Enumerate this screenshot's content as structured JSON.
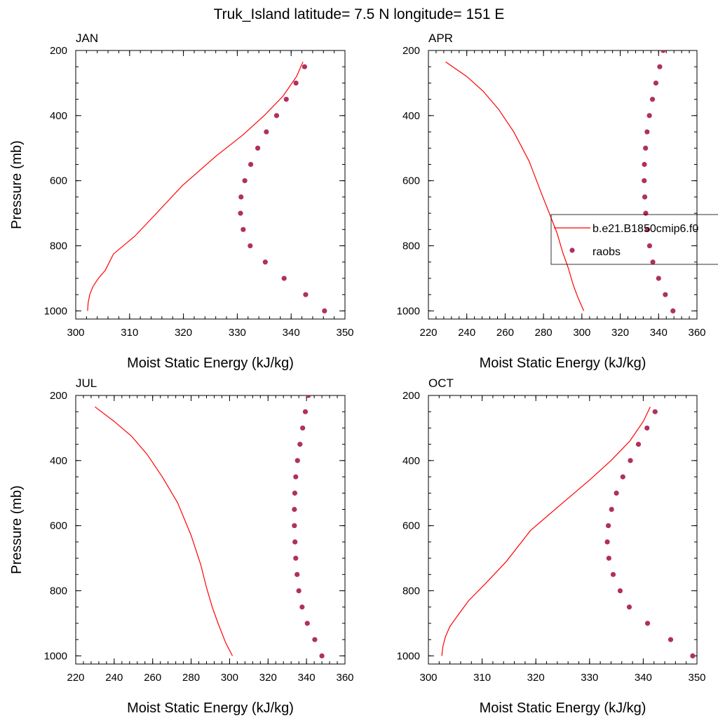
{
  "title": "Truk_Island  latitude= 7.5 N longitude= 151 E",
  "chart_data": [
    {
      "type": "line+scatter",
      "panel": "JAN",
      "xlabel": "Moist Static Energy (kJ/kg)",
      "ylabel": "Pressure (mb)",
      "xlim": [
        300,
        350
      ],
      "ylim": [
        200,
        1025
      ],
      "xticks": [
        300,
        310,
        320,
        330,
        340,
        350
      ],
      "yticks": [
        200,
        400,
        600,
        800,
        1000
      ],
      "model": {
        "name": "b.e21.B1850cmip6.f0",
        "x": [
          302.2,
          302.3,
          302.6,
          303.2,
          304.2,
          305.5,
          307.0,
          311.0,
          315.0,
          319.8,
          326.0,
          331.0,
          335.0,
          338.5,
          341.0,
          342.2
        ],
        "y": [
          1000,
          975,
          950,
          925,
          900,
          875,
          825,
          770,
          700,
          615,
          525,
          460,
          400,
          340,
          280,
          235
        ]
      },
      "obs": {
        "name": "raobs",
        "x": [
          346.2,
          342.7,
          338.7,
          335.2,
          332.4,
          331.1,
          330.6,
          330.7,
          331.4,
          332.5,
          333.8,
          335.4,
          337.3,
          339.1,
          340.9,
          342.5
        ],
        "y": [
          1000,
          950,
          900,
          850,
          800,
          750,
          700,
          650,
          600,
          550,
          500,
          450,
          400,
          350,
          300,
          250
        ]
      }
    },
    {
      "type": "line+scatter",
      "panel": "APR",
      "xlabel": "Moist Static Energy (kJ/kg)",
      "ylabel": "",
      "xlim": [
        220,
        360
      ],
      "ylim": [
        200,
        1025
      ],
      "xticks": [
        220,
        240,
        260,
        280,
        300,
        320,
        340,
        360
      ],
      "yticks": [
        200,
        400,
        600,
        800,
        1000
      ],
      "model": {
        "name": "b.e21.B1850cmip6.f0",
        "x": [
          301.0,
          298.0,
          295.5,
          293.0,
          290.0,
          287.0,
          283.0,
          279.0,
          272.5,
          264.5,
          256.5,
          248.5,
          240.0,
          229.0
        ],
        "y": [
          1000,
          960,
          920,
          870,
          820,
          760,
          700,
          640,
          540,
          450,
          380,
          325,
          280,
          235
        ]
      },
      "obs": {
        "name": "raobs",
        "x": [
          347.5,
          343.5,
          340.0,
          337.0,
          335.3,
          334.2,
          333.3,
          332.8,
          332.5,
          332.6,
          333.2,
          334.0,
          335.2,
          336.8,
          338.6,
          340.6,
          342.4
        ],
        "y": [
          1000,
          950,
          900,
          850,
          800,
          750,
          700,
          650,
          600,
          550,
          500,
          450,
          400,
          350,
          300,
          250,
          200
        ]
      },
      "legend": {
        "entries": [
          "b.e21.B1850cmip6.f0",
          "raobs"
        ],
        "position": "center-right"
      }
    },
    {
      "type": "line+scatter",
      "panel": "JUL",
      "xlabel": "Moist Static Energy (kJ/kg)",
      "ylabel": "Pressure (mb)",
      "xlim": [
        220,
        360
      ],
      "ylim": [
        200,
        1025
      ],
      "xticks": [
        220,
        240,
        260,
        280,
        300,
        320,
        340,
        360
      ],
      "yticks": [
        200,
        400,
        600,
        800,
        1000
      ],
      "model": {
        "name": "b.e21.B1850cmip6.f0",
        "x": [
          301.5,
          298.0,
          294.0,
          291.0,
          288.0,
          285.0,
          280.0,
          273.0,
          265.0,
          257.0,
          249.0,
          240.0,
          230.0
        ],
        "y": [
          1000,
          960,
          900,
          850,
          790,
          720,
          630,
          530,
          450,
          380,
          325,
          280,
          235
        ]
      },
      "obs": {
        "name": "raobs",
        "x": [
          348.0,
          344.3,
          340.4,
          337.7,
          336.0,
          335.1,
          334.4,
          334.0,
          333.7,
          333.7,
          333.9,
          334.4,
          335.3,
          336.6,
          338.0,
          339.4,
          341.0
        ],
        "y": [
          1000,
          950,
          900,
          850,
          800,
          750,
          700,
          650,
          600,
          550,
          500,
          450,
          400,
          350,
          300,
          250,
          200
        ]
      }
    },
    {
      "type": "line+scatter",
      "panel": "OCT",
      "xlabel": "Moist Static Energy (kJ/kg)",
      "ylabel": "",
      "xlim": [
        300,
        350
      ],
      "ylim": [
        200,
        1025
      ],
      "xticks": [
        300,
        310,
        320,
        330,
        340,
        350
      ],
      "yticks": [
        200,
        400,
        600,
        800,
        1000
      ],
      "model": {
        "name": "b.e21.B1850cmip6.f0",
        "x": [
          302.5,
          302.7,
          303.2,
          304.0,
          305.5,
          307.5,
          310.5,
          314.5,
          319.0,
          325.0,
          330.0,
          334.0,
          337.5,
          340.0,
          341.3
        ],
        "y": [
          1000,
          970,
          940,
          910,
          875,
          830,
          780,
          710,
          615,
          530,
          460,
          400,
          340,
          280,
          235
        ]
      },
      "obs": {
        "name": "raobs",
        "x": [
          349.2,
          345.1,
          340.8,
          337.4,
          335.7,
          334.4,
          333.6,
          333.3,
          333.5,
          334.1,
          335.0,
          336.2,
          337.6,
          339.1,
          340.7,
          342.2
        ],
        "y": [
          1000,
          950,
          900,
          850,
          800,
          750,
          700,
          650,
          600,
          550,
          500,
          450,
          400,
          350,
          300,
          250
        ]
      }
    }
  ],
  "colors": {
    "model_line": "#ff0000",
    "obs_marker": "#b03060",
    "axes": "#000000"
  }
}
